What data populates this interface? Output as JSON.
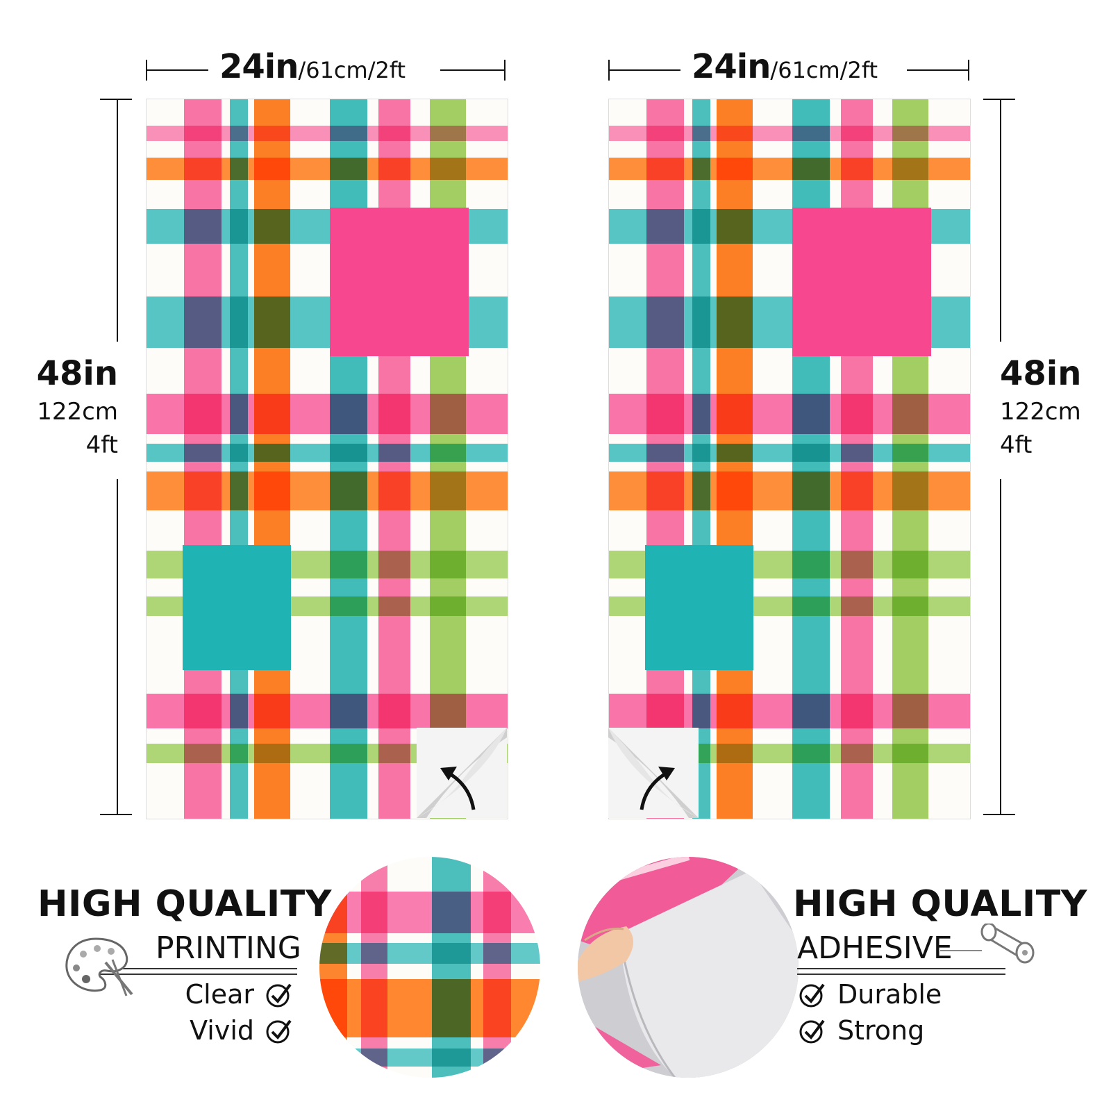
{
  "dimensions": {
    "width": {
      "big": "24in",
      "small": "/61cm/2ft"
    },
    "height": {
      "big": "48in",
      "line2": "122cm",
      "line3": "4ft"
    }
  },
  "colors": {
    "pink": "#f7478e",
    "orange": "#ff7a1a",
    "teal": "#1fb3b3",
    "green": "#8cc63f",
    "cream": "#fdfcf8"
  },
  "features": {
    "left": {
      "title": "HIGH QUALITY",
      "subtitle": "PRINTING",
      "icon": "paint-palette-icon",
      "items": [
        "Clear",
        "Vivid"
      ]
    },
    "right": {
      "title": "HIGH QUALITY",
      "subtitle": "ADHESIVE",
      "icon": "paper-roll-icon",
      "items": [
        "Durable",
        "Strong"
      ]
    }
  }
}
